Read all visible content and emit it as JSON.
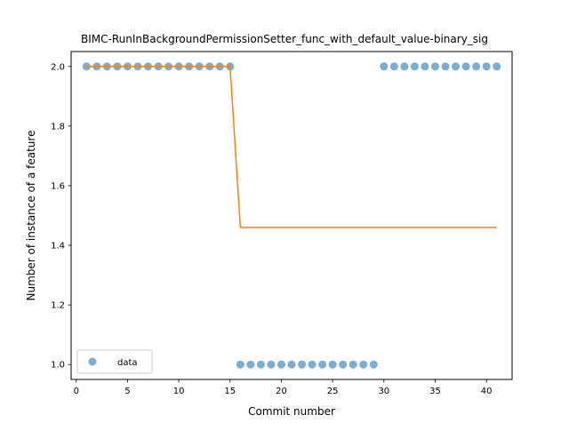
{
  "chart_data": {
    "type": "scatter",
    "title": "BIMC-RunInBackgroundPermissionSetter_func_with_default_value-binary_sig",
    "xlabel": "Commit number",
    "ylabel": "Number of instance of a feature",
    "xlim": [
      -0.5,
      42.5
    ],
    "ylim": [
      0.95,
      2.05
    ],
    "xticks": [
      0,
      5,
      10,
      15,
      20,
      25,
      30,
      35,
      40
    ],
    "yticks": [
      1.0,
      1.2,
      1.4,
      1.6,
      1.8,
      2.0
    ],
    "xtick_labels": [
      "0",
      "5",
      "10",
      "15",
      "20",
      "25",
      "30",
      "35",
      "40"
    ],
    "ytick_labels": [
      "1.0",
      "1.2",
      "1.4",
      "1.6",
      "1.8",
      "2.0"
    ],
    "grid": false,
    "legend_position": "lower-left",
    "series": [
      {
        "name": "data",
        "kind": "scatter",
        "color": "#1f77b4",
        "x": [
          1,
          2,
          3,
          4,
          5,
          6,
          7,
          8,
          9,
          10,
          11,
          12,
          13,
          14,
          15,
          16,
          17,
          18,
          19,
          20,
          21,
          22,
          23,
          24,
          25,
          26,
          27,
          28,
          29,
          30,
          31,
          32,
          33,
          34,
          35,
          36,
          37,
          38,
          39,
          40,
          41
        ],
        "y": [
          2,
          2,
          2,
          2,
          2,
          2,
          2,
          2,
          2,
          2,
          2,
          2,
          2,
          2,
          2,
          1,
          1,
          1,
          1,
          1,
          1,
          1,
          1,
          1,
          1,
          1,
          1,
          1,
          1,
          2,
          2,
          2,
          2,
          2,
          2,
          2,
          2,
          2,
          2,
          2,
          2
        ]
      },
      {
        "kind": "line",
        "color": "#ff7f0e",
        "x": [
          1,
          15,
          16,
          41
        ],
        "y": [
          2.0,
          2.0,
          1.46,
          1.46
        ]
      }
    ]
  }
}
